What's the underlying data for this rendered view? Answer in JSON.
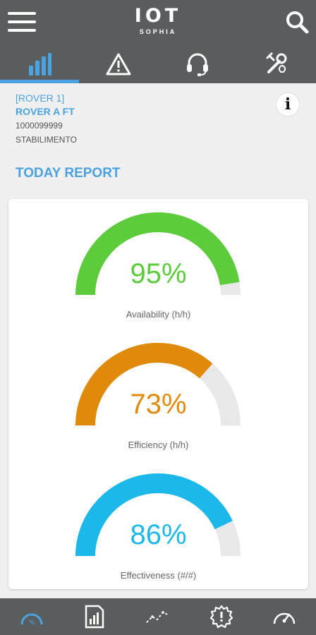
{
  "header": {
    "logo_main": "IOT",
    "logo_sub": "SOPHIA"
  },
  "tabs": [
    {
      "name": "stats",
      "icon": "bar-chart-icon",
      "active": true
    },
    {
      "name": "alerts",
      "icon": "warning-icon",
      "active": false
    },
    {
      "name": "support",
      "icon": "headset-icon",
      "active": false
    },
    {
      "name": "maintenance",
      "icon": "tools-icon",
      "active": false
    }
  ],
  "device": {
    "code": "[ROVER 1]",
    "name": "ROVER A FT",
    "serial": "1000099999",
    "plant": "STABILIMENTO"
  },
  "report": {
    "title": "TODAY REPORT",
    "gauges": [
      {
        "value": "95%",
        "fraction": 0.95,
        "label": "Availability (h/h)",
        "color": "#5ccc3c"
      },
      {
        "value": "73%",
        "fraction": 0.73,
        "label": "Efficiency (h/h)",
        "color": "#e08a0c"
      },
      {
        "value": "86%",
        "fraction": 0.86,
        "label": "Effectiveness (#/#)",
        "color": "#1db8ea"
      }
    ]
  },
  "footer": [
    {
      "icon": "percent-gauge-icon",
      "active": true
    },
    {
      "icon": "report-icon",
      "active": false
    },
    {
      "icon": "trend-icon",
      "active": false
    },
    {
      "icon": "gear-alert-icon",
      "active": false
    },
    {
      "icon": "speedometer-icon",
      "active": false
    }
  ],
  "colors": {
    "accent": "#4aa3df",
    "header_bg": "#5a5d5e",
    "gauge_track": "#e8e8e8"
  }
}
